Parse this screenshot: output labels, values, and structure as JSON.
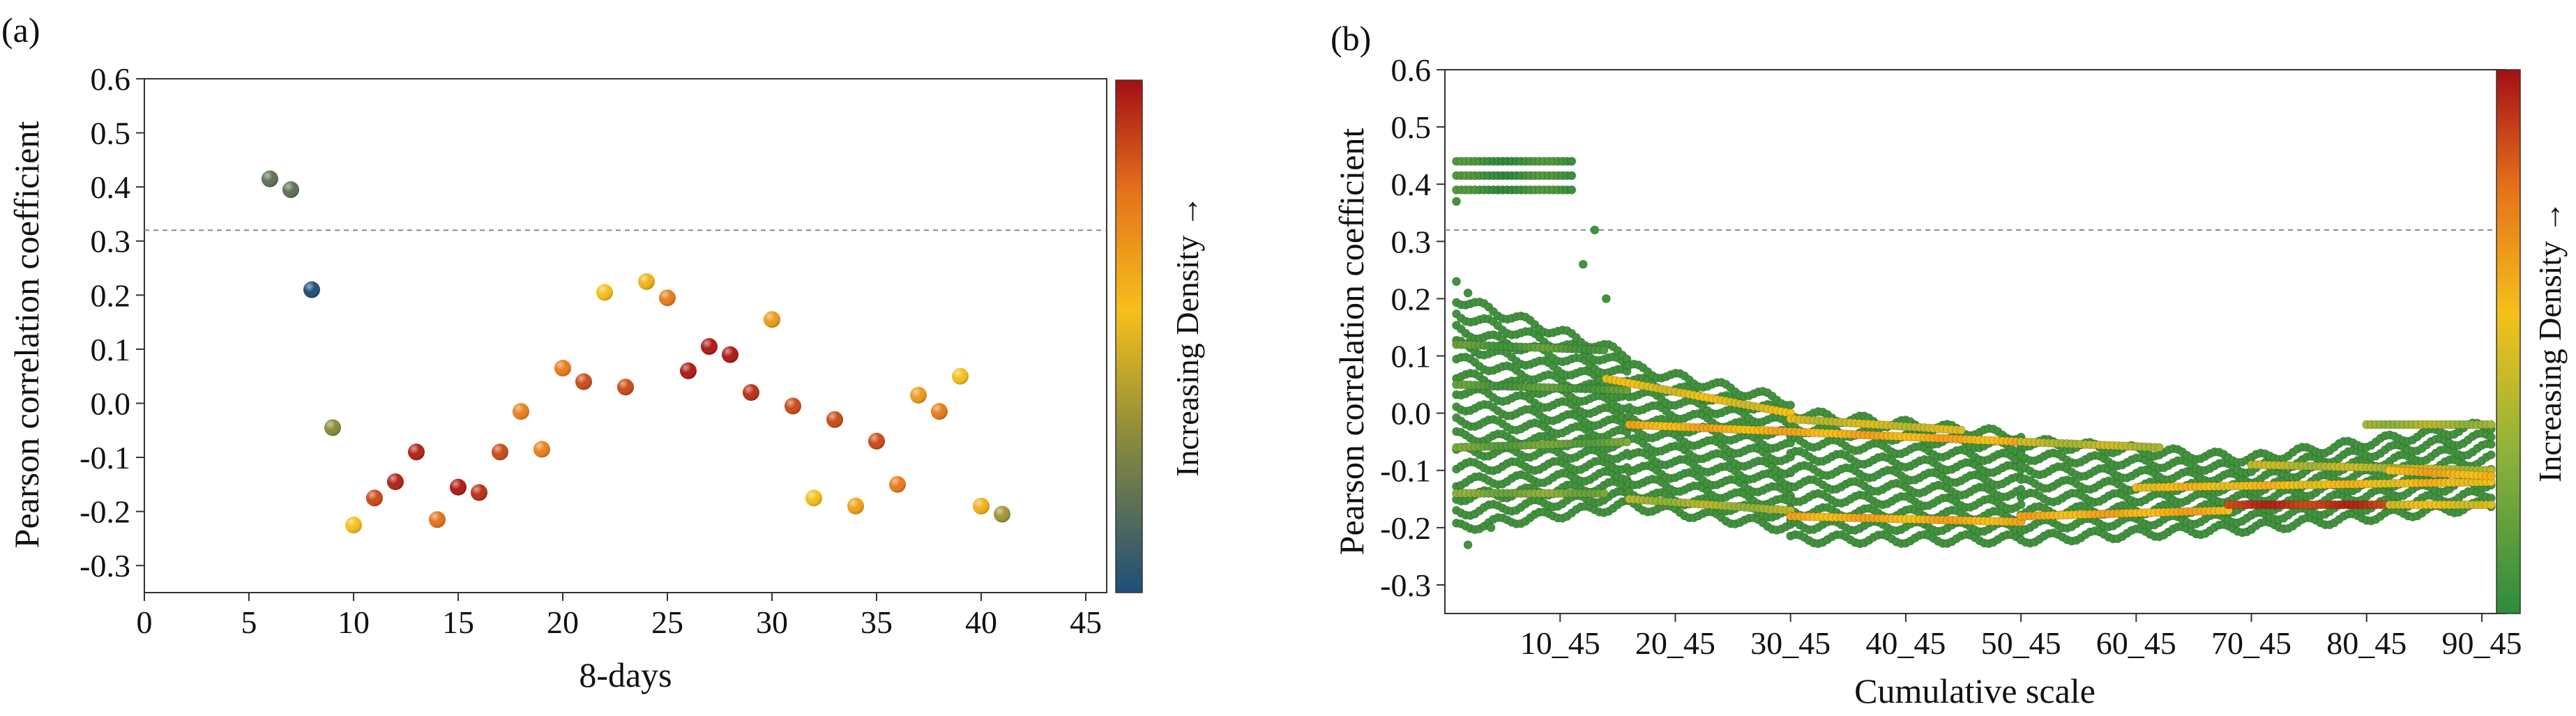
{
  "chart_data": [
    {
      "panel_label": "(a)",
      "type": "scatter",
      "xlabel": "8-days",
      "ylabel": "Pearson correlation coefficient",
      "xlim": [
        0,
        46
      ],
      "ylim": [
        -0.35,
        0.6
      ],
      "xticks": [
        "0",
        "5",
        "10",
        "15",
        "20",
        "25",
        "30",
        "35",
        "40",
        "45"
      ],
      "yticks": [
        "-0.3",
        "-0.2",
        "-0.1",
        "0.0",
        "0.1",
        "0.2",
        "0.3",
        "0.4",
        "0.5",
        "0.6"
      ],
      "reference_line_y": 0.32,
      "colorbar_label": "Increasing Density →",
      "colormap": [
        "#1f4e79",
        "#8a8a3c",
        "#f5c01a",
        "#e5731b",
        "#a50f15"
      ],
      "points": [
        {
          "x": 6,
          "y": 0.415,
          "density": 0.15
        },
        {
          "x": 7,
          "y": 0.395,
          "density": 0.15
        },
        {
          "x": 8,
          "y": 0.21,
          "density": 0.0
        },
        {
          "x": 9,
          "y": -0.045,
          "density": 0.25
        },
        {
          "x": 10,
          "y": -0.225,
          "density": 0.5
        },
        {
          "x": 11,
          "y": -0.175,
          "density": 0.85
        },
        {
          "x": 12,
          "y": -0.145,
          "density": 0.95
        },
        {
          "x": 13,
          "y": -0.09,
          "density": 0.95
        },
        {
          "x": 14,
          "y": -0.215,
          "density": 0.75
        },
        {
          "x": 15,
          "y": -0.155,
          "density": 0.97
        },
        {
          "x": 16,
          "y": -0.165,
          "density": 0.92
        },
        {
          "x": 17,
          "y": -0.09,
          "density": 0.85
        },
        {
          "x": 18,
          "y": -0.015,
          "density": 0.7
        },
        {
          "x": 19,
          "y": -0.085,
          "density": 0.7
        },
        {
          "x": 20,
          "y": 0.065,
          "density": 0.72
        },
        {
          "x": 21,
          "y": 0.04,
          "density": 0.85
        },
        {
          "x": 22,
          "y": 0.205,
          "density": 0.5
        },
        {
          "x": 23,
          "y": 0.03,
          "density": 0.85
        },
        {
          "x": 24,
          "y": 0.225,
          "density": 0.55
        },
        {
          "x": 25,
          "y": 0.195,
          "density": 0.72
        },
        {
          "x": 26,
          "y": 0.06,
          "density": 0.97
        },
        {
          "x": 27,
          "y": 0.105,
          "density": 0.97
        },
        {
          "x": 28,
          "y": 0.09,
          "density": 0.97
        },
        {
          "x": 29,
          "y": 0.02,
          "density": 0.92
        },
        {
          "x": 30,
          "y": 0.155,
          "density": 0.62
        },
        {
          "x": 31,
          "y": -0.005,
          "density": 0.85
        },
        {
          "x": 32,
          "y": -0.175,
          "density": 0.5
        },
        {
          "x": 33,
          "y": -0.03,
          "density": 0.85
        },
        {
          "x": 34,
          "y": -0.19,
          "density": 0.6
        },
        {
          "x": 35,
          "y": -0.07,
          "density": 0.85
        },
        {
          "x": 36,
          "y": -0.15,
          "density": 0.72
        },
        {
          "x": 37,
          "y": 0.015,
          "density": 0.62
        },
        {
          "x": 38,
          "y": -0.015,
          "density": 0.72
        },
        {
          "x": 39,
          "y": 0.05,
          "density": 0.5
        },
        {
          "x": 40,
          "y": -0.19,
          "density": 0.55
        },
        {
          "x": 41,
          "y": -0.205,
          "density": 0.3
        }
      ]
    },
    {
      "panel_label": "(b)",
      "type": "scatter",
      "xlabel": "Cumulative scale",
      "ylabel": "Pearson correlation coefficient",
      "xlim": [
        0,
        92
      ],
      "ylim": [
        -0.35,
        0.6
      ],
      "xticks": [
        {
          "value": 10,
          "label": "10_45"
        },
        {
          "value": 20,
          "label": "20_45"
        },
        {
          "value": 30,
          "label": "30_45"
        },
        {
          "value": 40,
          "label": "40_45"
        },
        {
          "value": 50,
          "label": "50_45"
        },
        {
          "value": 60,
          "label": "60_45"
        },
        {
          "value": 70,
          "label": "70_45"
        },
        {
          "value": 80,
          "label": "80_45"
        },
        {
          "value": 90,
          "label": "90_45"
        }
      ],
      "yticks": [
        "-0.3",
        "-0.2",
        "-0.1",
        "0.0",
        "0.1",
        "0.2",
        "0.3",
        "0.4",
        "0.5",
        "0.6"
      ],
      "reference_line_y": 0.32,
      "colorbar_label": "Increasing Density →",
      "colormap": [
        "#2e8b3e",
        "#8fb23a",
        "#f5c01a",
        "#e5731b",
        "#a50f15"
      ],
      "bands": [
        {
          "x0": 1,
          "x1": 11,
          "y0": 0.44,
          "y1": 0.44,
          "density": 0.05
        },
        {
          "x0": 1,
          "x1": 11,
          "y0": 0.415,
          "y1": 0.415,
          "density": 0.05
        },
        {
          "x0": 1,
          "x1": 11,
          "y0": 0.39,
          "y1": 0.39,
          "density": 0.05
        },
        {
          "x0": 1,
          "x1": 14,
          "y0": 0.12,
          "y1": 0.11,
          "density": 0.1
        },
        {
          "x0": 1,
          "x1": 16,
          "y0": 0.05,
          "y1": 0.04,
          "density": 0.1
        },
        {
          "x0": 1,
          "x1": 16,
          "y0": -0.06,
          "y1": -0.05,
          "density": 0.15
        },
        {
          "x0": 1,
          "x1": 14,
          "y0": -0.14,
          "y1": -0.14,
          "density": 0.2
        },
        {
          "x0": 14,
          "x1": 30,
          "y0": 0.06,
          "y1": 0.0,
          "density": 0.45
        },
        {
          "x0": 30,
          "x1": 45,
          "y0": -0.01,
          "y1": -0.03,
          "density": 0.4
        },
        {
          "x0": 16,
          "x1": 50,
          "y0": -0.02,
          "y1": -0.05,
          "density": 0.55
        },
        {
          "x0": 50,
          "x1": 62,
          "y0": -0.05,
          "y1": -0.06,
          "density": 0.35
        },
        {
          "x0": 16,
          "x1": 30,
          "y0": -0.15,
          "y1": -0.17,
          "density": 0.3
        },
        {
          "x0": 30,
          "x1": 50,
          "y0": -0.18,
          "y1": -0.19,
          "density": 0.55
        },
        {
          "x0": 50,
          "x1": 68,
          "y0": -0.18,
          "y1": -0.17,
          "density": 0.55
        },
        {
          "x0": 68,
          "x1": 82,
          "y0": -0.16,
          "y1": -0.16,
          "density": 0.9
        },
        {
          "x0": 82,
          "x1": 91,
          "y0": -0.16,
          "y1": -0.16,
          "density": 0.45
        },
        {
          "x0": 60,
          "x1": 91,
          "y0": -0.13,
          "y1": -0.12,
          "density": 0.5
        },
        {
          "x0": 70,
          "x1": 91,
          "y0": -0.09,
          "y1": -0.1,
          "density": 0.35
        },
        {
          "x0": 80,
          "x1": 91,
          "y0": -0.02,
          "y1": -0.02,
          "density": 0.3
        },
        {
          "x0": 82,
          "x1": 91,
          "y0": -0.1,
          "y1": -0.11,
          "density": 0.55
        }
      ],
      "clouds": [
        {
          "x0": 1,
          "x1": 16,
          "ymin_start": -0.2,
          "ymin_end": -0.16,
          "ymax_start": 0.2,
          "ymax_end": 0.1,
          "rows": 16,
          "density": 0.05
        },
        {
          "x0": 16,
          "x1": 30,
          "ymin_start": -0.16,
          "ymin_end": -0.2,
          "ymax_start": 0.08,
          "ymax_end": 0.02,
          "rows": 12,
          "density": 0.05
        },
        {
          "x0": 30,
          "x1": 50,
          "ymin_start": -0.22,
          "ymin_end": -0.22,
          "ymax_start": 0.0,
          "ymax_end": -0.04,
          "rows": 10,
          "density": 0.05
        },
        {
          "x0": 50,
          "x1": 70,
          "ymin_start": -0.22,
          "ymin_end": -0.2,
          "ymax_start": -0.05,
          "ymax_end": -0.08,
          "rows": 8,
          "density": 0.05
        },
        {
          "x0": 70,
          "x1": 91,
          "ymin_start": -0.2,
          "ymin_end": -0.16,
          "ymax_start": -0.08,
          "ymax_end": -0.02,
          "rows": 8,
          "density": 0.05
        }
      ],
      "outliers": [
        {
          "x": 13,
          "y": 0.32,
          "density": 0.05
        },
        {
          "x": 12,
          "y": 0.26,
          "density": 0.05
        },
        {
          "x": 14,
          "y": 0.2,
          "density": 0.05
        },
        {
          "x": 1,
          "y": 0.37,
          "density": 0.05
        },
        {
          "x": 1,
          "y": 0.23,
          "density": 0.05
        },
        {
          "x": 2,
          "y": 0.21,
          "density": 0.05
        },
        {
          "x": 2,
          "y": -0.23,
          "density": 0.05
        },
        {
          "x": 4,
          "y": -0.2,
          "density": 0.05
        }
      ]
    }
  ]
}
